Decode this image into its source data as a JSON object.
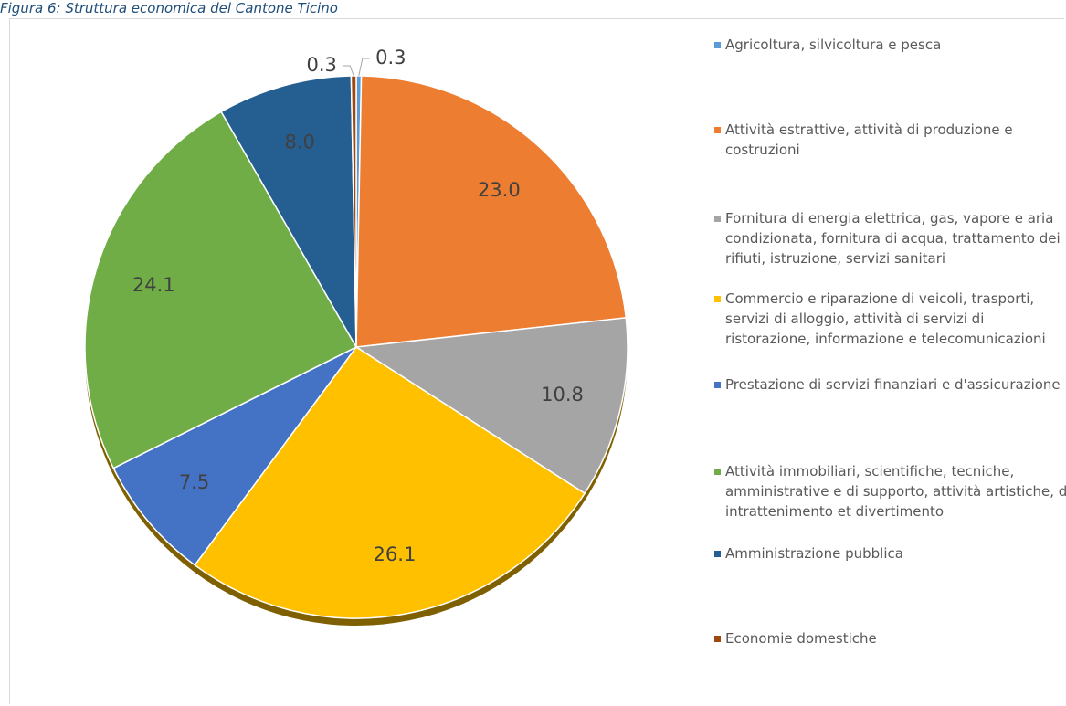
{
  "chart_data": {
    "type": "pie",
    "title": "Figura 6: Struttura economica del Cantone Ticino",
    "categories": [
      "Agricoltura, silvicoltura e pesca",
      "Attività estrattive, attività di produzione e costruzioni",
      "Fornitura di energia elettrica, gas, vapore e aria condizionata, fornitura di acqua, trattamento dei rifiuti, istruzione, servizi sanitari",
      "Commercio e riparazione di veicoli, trasporti, servizi di alloggio, attività di servizi di ristorazione, informazione e telecomunicazioni",
      "Prestazione di servizi finanziari e d'assicurazione",
      "Attività immobiliari, scientifiche, tecniche, amministrative e di supporto, attività artistiche, di intrattenimento et divertimento",
      "Amministrazione pubblica",
      "Economie domestiche"
    ],
    "values": [
      0.3,
      23.0,
      10.8,
      26.1,
      7.5,
      24.1,
      8.0,
      0.3
    ],
    "value_labels": [
      "0.3",
      "23.0",
      "10.8",
      "26.1",
      "7.5",
      "24.1",
      "8.0",
      "0.3"
    ],
    "colors": [
      "#5b9bd5",
      "#ed7d31",
      "#a5a5a5",
      "#ffc000",
      "#4472c4",
      "#70ad47",
      "#255e91",
      "#9e480e"
    ]
  }
}
